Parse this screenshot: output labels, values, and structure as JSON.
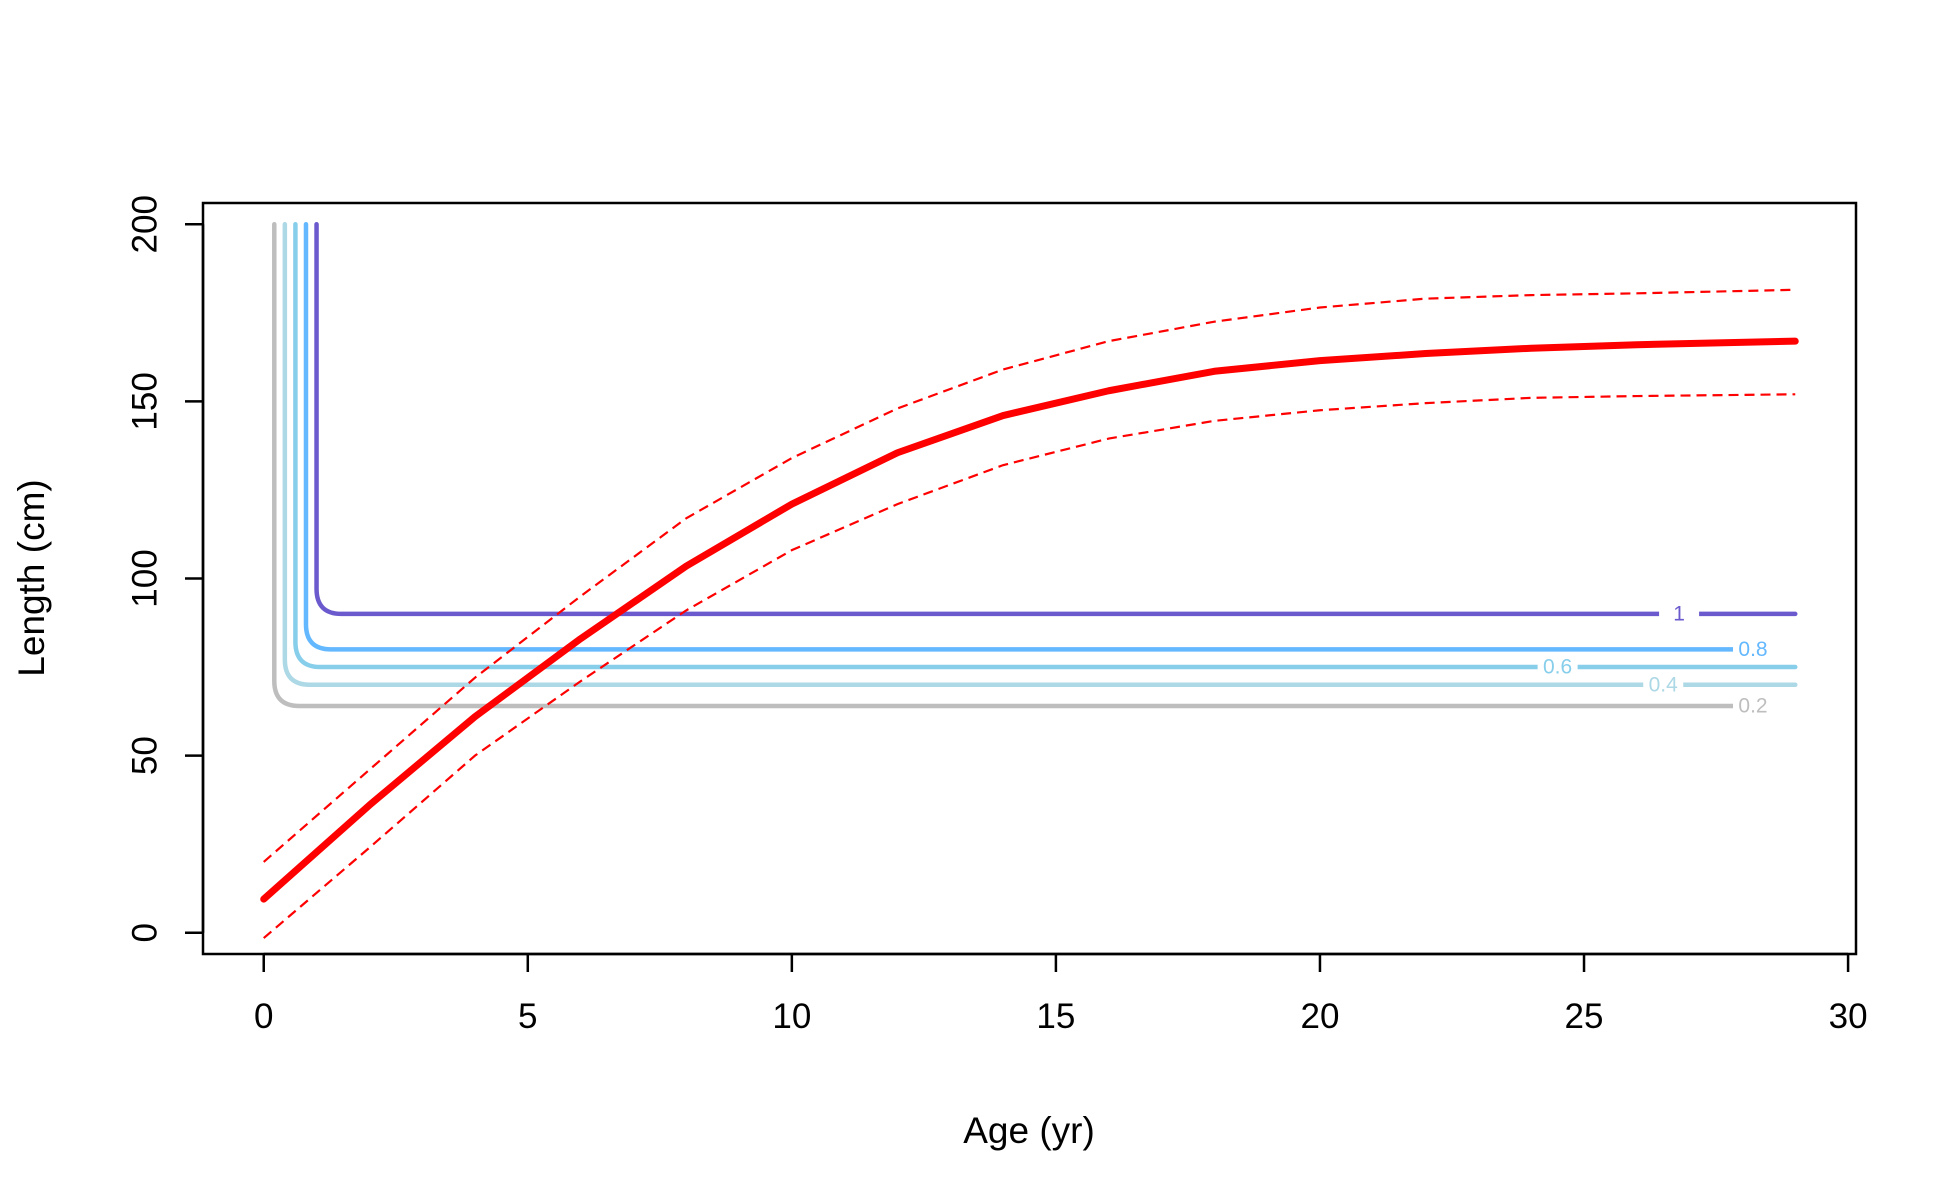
{
  "chart_data": {
    "type": "line",
    "title": "",
    "xlabel": "Age (yr)",
    "ylabel": "Length (cm)",
    "xlim": [
      -1.15,
      30.15
    ],
    "ylim": [
      -6,
      206
    ],
    "xticks": [
      0,
      5,
      10,
      15,
      20,
      25,
      30
    ],
    "yticks": [
      0,
      50,
      100,
      150,
      200
    ],
    "xtick_labels": [
      "0",
      "5",
      "10",
      "15",
      "20",
      "25",
      "30"
    ],
    "ytick_labels": [
      "0",
      "50",
      "100",
      "150",
      "200"
    ],
    "grid": false,
    "legend": "none",
    "growth_curve": {
      "color": "#ff0000",
      "x": [
        0,
        2,
        4,
        6,
        8,
        10,
        12,
        14,
        16,
        18,
        20,
        22,
        24,
        26,
        29
      ],
      "y": [
        9.5,
        36,
        61,
        83,
        103.5,
        121,
        135.5,
        146,
        153,
        158.5,
        161.5,
        163.5,
        165,
        166,
        167
      ],
      "upper": [
        20,
        46,
        72,
        95,
        117,
        134,
        148,
        159,
        167,
        172.5,
        176.5,
        179,
        180,
        180.5,
        181.5
      ],
      "lower": [
        -1.5,
        24,
        50,
        71,
        91,
        108,
        121,
        132,
        139.5,
        144.5,
        147.5,
        149.5,
        151,
        151.5,
        152
      ]
    },
    "contours": [
      {
        "label": "0.2",
        "color": "#bebebe",
        "x_vertical": 0.2,
        "y_level": 64,
        "x_end": 28,
        "label_x": 28.2
      },
      {
        "label": "0.4",
        "color": "#add8e6",
        "x_vertical": 0.4,
        "y_level": 70,
        "x_end": 29,
        "label_x": 26.5
      },
      {
        "label": "0.6",
        "color": "#87ceeb",
        "x_vertical": 0.6,
        "y_level": 75,
        "x_end": 29,
        "label_x": 24.5
      },
      {
        "label": "0.8",
        "color": "#63b8ff",
        "x_vertical": 0.8,
        "y_level": 80,
        "x_end": 28,
        "label_x": 28.2
      },
      {
        "label": "1",
        "color": "#6a5acd",
        "x_vertical": 1.0,
        "y_level": 90,
        "x_end": 29,
        "label_x": 26.8
      }
    ],
    "contour_top": 200
  }
}
